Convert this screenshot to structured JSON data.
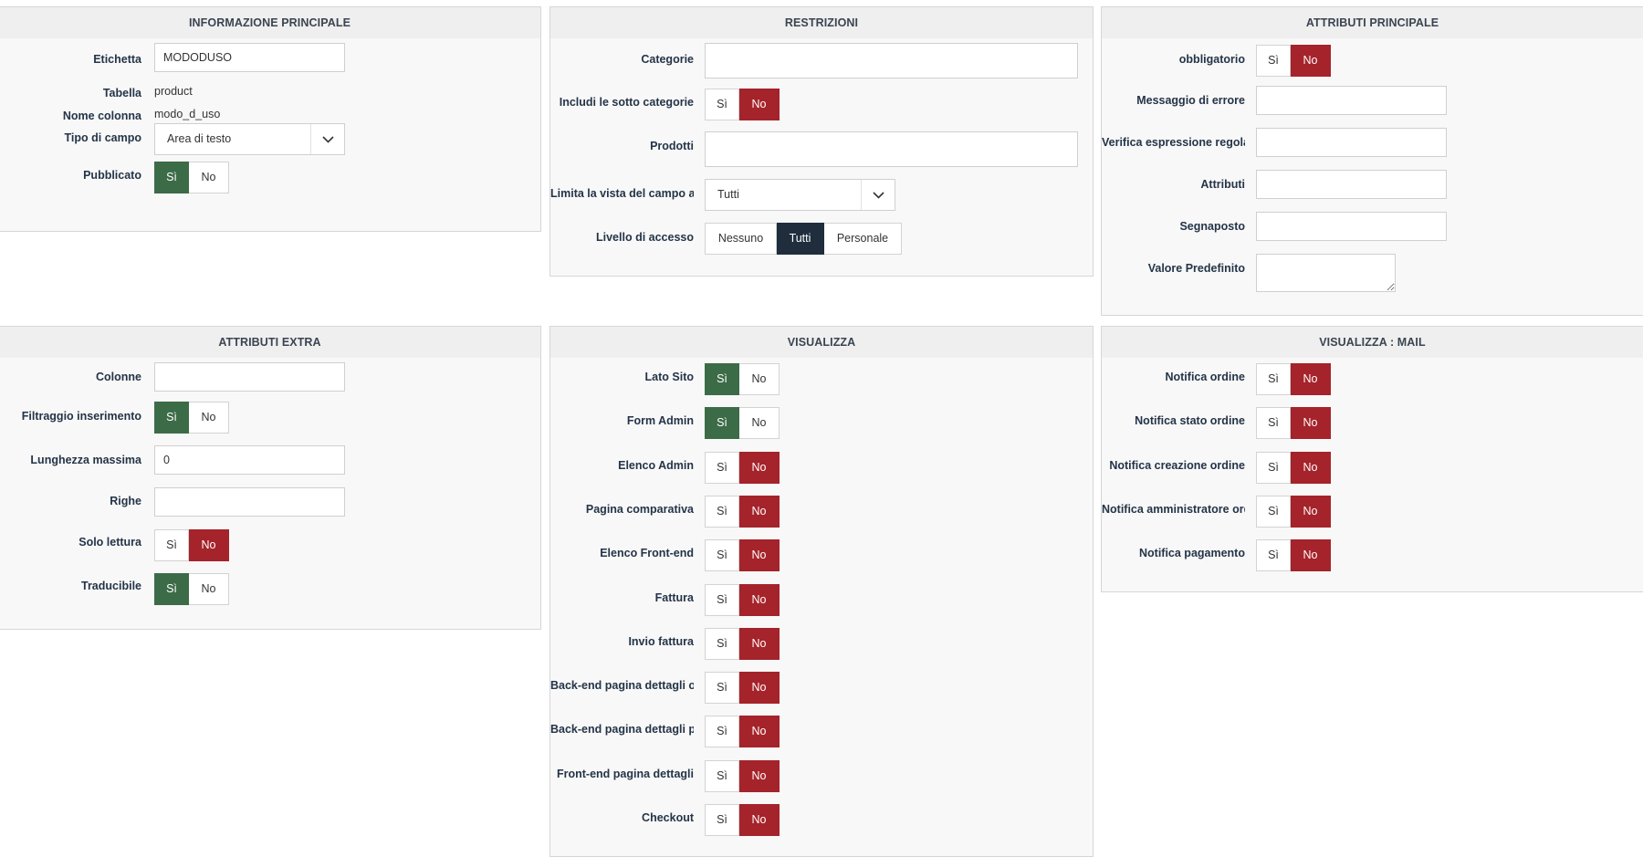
{
  "yes_label": "Sì",
  "no_label": "No",
  "colors": {
    "yes_active": "#3c6b48",
    "no_active": "#a5232a",
    "dark_active": "#1f2d3d"
  },
  "informazione": {
    "title": "INFORMAZIONE PRINCIPALE",
    "etichetta_label": "Etichetta",
    "etichetta_value": "MODODUSO",
    "tabella_label": "Tabella",
    "tabella_value": "product",
    "nome_colonna_label": "Nome colonna",
    "nome_colonna_value": "modo_d_uso",
    "tipo_campo_label": "Tipo di campo",
    "tipo_campo_value": "Area di testo",
    "pubblicato_label": "Pubblicato",
    "pubblicato_state": "yes"
  },
  "restrizioni": {
    "title": "RESTRIZIONI",
    "categorie_label": "Categorie",
    "categorie_value": "",
    "sotto_categorie_label": "Includi le sotto categorie",
    "sotto_categorie_state": "no",
    "prodotti_label": "Prodotti",
    "prodotti_value": "",
    "limita_label": "Limita la vista del campo a",
    "limita_value": "Tutti",
    "livello_label": "Livello di accesso",
    "livello_options": [
      "Nessuno",
      "Tutti",
      "Personale"
    ],
    "livello_selected": "Tutti"
  },
  "attributi_principale": {
    "title": "ATTRIBUTI PRINCIPALE",
    "obbligatorio_label": "obbligatorio",
    "obbligatorio_state": "no",
    "messaggio_label": "Messaggio di errore",
    "verifica_label": "Verifica espressione regolare",
    "attributi_label": "Attributi",
    "segnaposto_label": "Segnaposto",
    "valore_label": "Valore Predefinito"
  },
  "attributi_extra": {
    "title": "ATTRIBUTI EXTRA",
    "colonne_label": "Colonne",
    "colonne_value": "",
    "filtraggio_label": "Filtraggio inserimento",
    "filtraggio_state": "yes",
    "lunghezza_label": "Lunghezza massima",
    "lunghezza_value": "0",
    "righe_label": "Righe",
    "righe_value": "",
    "solo_lettura_label": "Solo lettura",
    "solo_lettura_state": "no",
    "traducibile_label": "Traducibile",
    "traducibile_state": "yes"
  },
  "visualizza": {
    "title": "VISUALIZZA",
    "items": [
      {
        "label": "Lato Sito",
        "state": "yes"
      },
      {
        "label": "Form Admin",
        "state": "yes"
      },
      {
        "label": "Elenco Admin",
        "state": "no"
      },
      {
        "label": "Pagina comparativa",
        "state": "no"
      },
      {
        "label": "Elenco Front-end",
        "state": "no"
      },
      {
        "label": "Fattura",
        "state": "no"
      },
      {
        "label": "Invio fattura",
        "state": "no"
      },
      {
        "label": "Back-end pagina dettagli ordine",
        "state": "no"
      },
      {
        "label": "Back-end pagina dettagli prodotto",
        "state": "no"
      },
      {
        "label": "Front-end pagina dettagli",
        "state": "no"
      },
      {
        "label": "Checkout",
        "state": "no"
      }
    ]
  },
  "visualizza_mail": {
    "title": "VISUALIZZA : MAIL",
    "items": [
      {
        "label": "Notifica ordine",
        "state": "no"
      },
      {
        "label": "Notifica stato ordine",
        "state": "no"
      },
      {
        "label": "Notifica creazione ordine",
        "state": "no"
      },
      {
        "label": "Notifica amministratore ordine",
        "state": "no"
      },
      {
        "label": "Notifica pagamento",
        "state": "no"
      }
    ]
  }
}
